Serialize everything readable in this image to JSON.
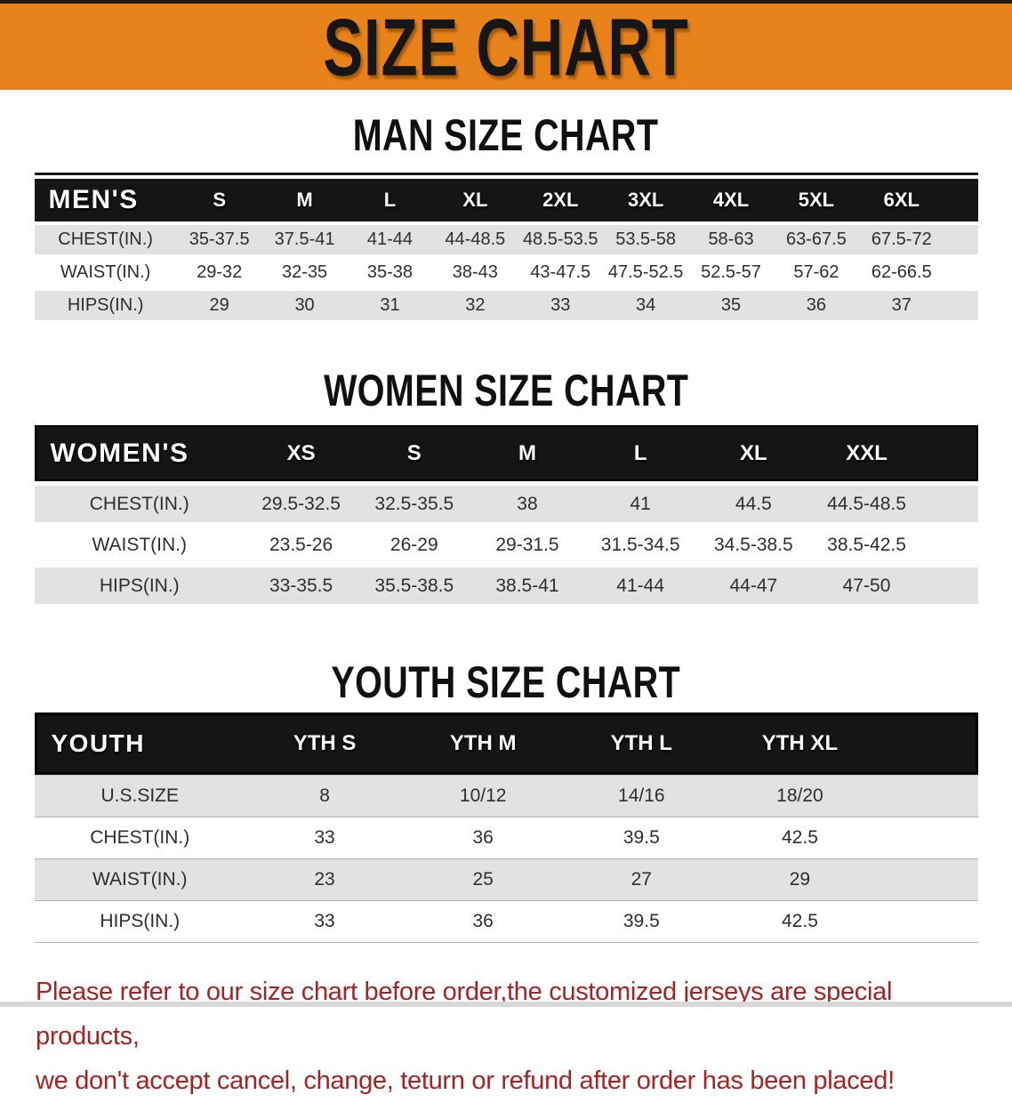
{
  "banner": {
    "title": "SIZE CHART",
    "bg_color": "#E8831B"
  },
  "sections": [
    {
      "title": "MAN SIZE CHART",
      "header_label": "MEN'S",
      "columns": [
        "S",
        "M",
        "L",
        "XL",
        "2XL",
        "3XL",
        "4XL",
        "5XL",
        "6XL"
      ],
      "rows": [
        {
          "label": "CHEST(IN.)",
          "values": [
            "35-37.5",
            "37.5-41",
            "41-44",
            "44-48.5",
            "48.5-53.5",
            "53.5-58",
            "58-63",
            "63-67.5",
            "67.5-72"
          ]
        },
        {
          "label": "WAIST(IN.)",
          "values": [
            "29-32",
            "32-35",
            "35-38",
            "38-43",
            "43-47.5",
            "47.5-52.5",
            "52.5-57",
            "57-62",
            "62-66.5"
          ]
        },
        {
          "label": "HIPS(IN.)",
          "values": [
            "29",
            "30",
            "31",
            "32",
            "33",
            "34",
            "35",
            "36",
            "37"
          ]
        }
      ]
    },
    {
      "title": "WOMEN SIZE CHART",
      "header_label": "WOMEN'S",
      "columns": [
        "XS",
        "S",
        "M",
        "L",
        "XL",
        "XXL"
      ],
      "rows": [
        {
          "label": "CHEST(IN.)",
          "values": [
            "29.5-32.5",
            "32.5-35.5",
            "38",
            "41",
            "44.5",
            "44.5-48.5"
          ]
        },
        {
          "label": "WAIST(IN.)",
          "values": [
            "23.5-26",
            "26-29",
            "29-31.5",
            "31.5-34.5",
            "34.5-38.5",
            "38.5-42.5"
          ]
        },
        {
          "label": "HIPS(IN.)",
          "values": [
            "33-35.5",
            "35.5-38.5",
            "38.5-41",
            "41-44",
            "44-47",
            "47-50"
          ]
        }
      ]
    },
    {
      "title": "YOUTH SIZE CHART",
      "header_label": "YOUTH",
      "columns": [
        "YTH S",
        "YTH M",
        "YTH L",
        "YTH XL"
      ],
      "rows": [
        {
          "label": "U.S.SIZE",
          "values": [
            "8",
            "10/12",
            "14/16",
            "18/20"
          ]
        },
        {
          "label": "CHEST(IN.)",
          "values": [
            "33",
            "36",
            "39.5",
            "42.5"
          ]
        },
        {
          "label": "WAIST(IN.)",
          "values": [
            "23",
            "25",
            "27",
            "29"
          ]
        },
        {
          "label": "HIPS(IN.)",
          "values": [
            "33",
            "36",
            "39.5",
            "42.5"
          ]
        }
      ]
    }
  ],
  "disclaimer": {
    "line1": "Please refer to our size chart before order,the customized jerseys are special products,",
    "line2": "we don't accept cancel, change, teturn or refund after order has been placed!",
    "color": "#A62323"
  }
}
